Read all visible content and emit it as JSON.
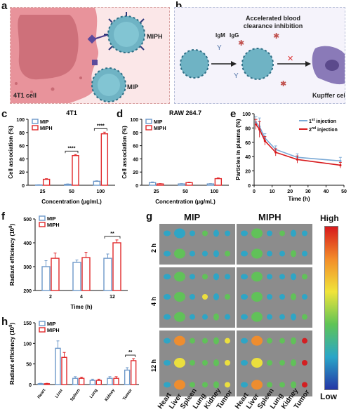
{
  "panels": {
    "a": {
      "label": "a",
      "cell_label": "4T1 cell",
      "mip_label": "MIP",
      "miph_label": "MIPH"
    },
    "b": {
      "label": "b",
      "title_line1": "Accelerated blood",
      "title_line2": "clearance inhibition",
      "igm": "IgM",
      "igg": "IgG",
      "cell_label": "Kupffer cell"
    },
    "c": {
      "label": "c"
    },
    "d": {
      "label": "d"
    },
    "e": {
      "label": "e"
    },
    "f": {
      "label": "f"
    },
    "g": {
      "label": "g"
    },
    "h": {
      "label": "h"
    }
  },
  "heatmap": {
    "col_titles": [
      "MIP",
      "MIPH"
    ],
    "row_labels": [
      "2 h",
      "4 h",
      "12 h"
    ],
    "organs": [
      "Heart",
      "Liver",
      "Spleen",
      "Lung",
      "Kidney",
      "Tumor"
    ],
    "colorbar_high": "High",
    "colorbar_low": "Low"
  },
  "chart_data": [
    {
      "id": "c",
      "type": "bar",
      "title": "4T1",
      "categories": [
        "25",
        "50",
        "100"
      ],
      "series": [
        {
          "name": "MIP",
          "values": [
            0.5,
            1.5,
            6
          ],
          "errors": [
            0.3,
            0.5,
            0.8
          ],
          "color": "#6d98c9"
        },
        {
          "name": "MIPH",
          "values": [
            9,
            45,
            78
          ],
          "errors": [
            1,
            1.5,
            2.5
          ],
          "color": "#e0292b"
        }
      ],
      "xlabel": "Concentration (µg/mL)",
      "ylabel": "Cell association (%)",
      "ylim": [
        0,
        100
      ],
      "yticks": [
        0,
        20,
        40,
        60,
        80,
        100
      ],
      "significance": [
        {
          "category": "50",
          "label": "****"
        },
        {
          "category": "100",
          "label": "****"
        }
      ]
    },
    {
      "id": "d",
      "type": "bar",
      "title": "RAW 264.7",
      "categories": [
        "25",
        "50",
        "100"
      ],
      "series": [
        {
          "name": "MIP",
          "values": [
            4,
            2,
            2
          ],
          "errors": [
            1,
            0.5,
            0.5
          ],
          "color": "#6d98c9"
        },
        {
          "name": "MIPH",
          "values": [
            2,
            4,
            10
          ],
          "errors": [
            0.5,
            0.8,
            1.2
          ],
          "color": "#e0292b"
        }
      ],
      "xlabel": "Concentration (µg/mL)",
      "ylabel": "Cell association (%)",
      "ylim": [
        0,
        100
      ],
      "yticks": [
        0,
        20,
        40,
        60,
        80,
        100
      ]
    },
    {
      "id": "e",
      "type": "line",
      "series": [
        {
          "name": "1st injection",
          "name_main": "1",
          "name_sup": "st",
          "name_rest": " injection",
          "x": [
            1,
            3,
            6,
            12,
            24,
            48
          ],
          "y": [
            88,
            82,
            66,
            50,
            39,
            34
          ],
          "errors": [
            8,
            12,
            6,
            5,
            5,
            5
          ],
          "color": "#7baad6"
        },
        {
          "name": "2nd injection",
          "name_main": "2",
          "name_sup": "nd",
          "name_rest": " injection",
          "x": [
            1,
            3,
            6,
            12,
            24,
            48
          ],
          "y": [
            85,
            78,
            62,
            46,
            36,
            28
          ],
          "errors": [
            7,
            11,
            6,
            5,
            5,
            4
          ],
          "color": "#d7191c"
        }
      ],
      "xlabel": "Time (h)",
      "ylabel": "Particles in plasma (%)",
      "xlim": [
        0,
        50
      ],
      "xticks": [
        0,
        10,
        20,
        30,
        40,
        50
      ],
      "ylim": [
        0,
        100
      ],
      "yticks": [
        0,
        20,
        40,
        60,
        80,
        100
      ]
    },
    {
      "id": "f",
      "type": "bar",
      "categories": [
        "2",
        "4",
        "12"
      ],
      "series": [
        {
          "name": "MIP",
          "values": [
            300,
            318,
            335
          ],
          "errors": [
            25,
            10,
            18
          ],
          "color": "#6d98c9"
        },
        {
          "name": "MIPH",
          "values": [
            335,
            338,
            400
          ],
          "errors": [
            22,
            22,
            12
          ],
          "color": "#e0292b"
        }
      ],
      "xlabel": "Time (h)",
      "ylabel_main": "Radiant efficiency (10",
      "ylabel_sup": "8",
      "ylabel_end": ")",
      "ylim": [
        200,
        500
      ],
      "yticks": [
        200,
        300,
        400,
        500
      ],
      "significance": [
        {
          "category": "12",
          "label": "**"
        }
      ]
    },
    {
      "id": "h",
      "type": "bar",
      "categories": [
        "Heart",
        "Liver",
        "Spleen",
        "Lung",
        "Kidney",
        "Tumor"
      ],
      "series": [
        {
          "name": "MIP",
          "values": [
            2,
            88,
            15,
            10,
            15,
            35
          ],
          "errors": [
            1,
            18,
            4,
            3,
            4,
            6
          ],
          "color": "#6d98c9"
        },
        {
          "name": "MIPH",
          "values": [
            2,
            66,
            15,
            10,
            15,
            58
          ],
          "errors": [
            1,
            12,
            3,
            3,
            4,
            5
          ],
          "color": "#e0292b"
        }
      ],
      "xlabel": "",
      "ylabel_main": "Radiant efficiency (10",
      "ylabel_sup": "8",
      "ylabel_end": ")",
      "ylim": [
        0,
        150
      ],
      "yticks": [
        0,
        50,
        100,
        150
      ],
      "significance": [
        {
          "category": "Tumor",
          "label": "**"
        }
      ]
    }
  ]
}
